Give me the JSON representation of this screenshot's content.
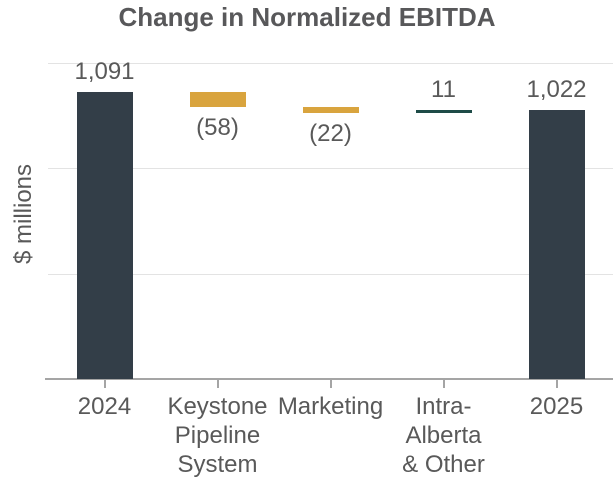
{
  "chart_data": {
    "type": "waterfall",
    "title": "Change in Normalized EBITDA",
    "ylabel": "$ millions",
    "xlabel": "",
    "ylim": [
      0,
      1200
    ],
    "gridline_values": [
      400,
      800,
      1200
    ],
    "grid": "horizontal-light",
    "legend": "none",
    "bars": [
      {
        "tick_label": "2024",
        "role": "total",
        "value": 1091,
        "display": "1,091",
        "start": 0,
        "end": 1091,
        "label_position": "above"
      },
      {
        "tick_label": "Keystone\nPipeline\nSystem",
        "role": "decrease",
        "value": -58,
        "display": "(58)",
        "start": 1091,
        "end": 1033,
        "label_position": "below"
      },
      {
        "tick_label": "Marketing",
        "role": "decrease",
        "value": -22,
        "display": "(22)",
        "start": 1033,
        "end": 1011,
        "label_position": "below"
      },
      {
        "tick_label": "Intra-\nAlberta\n& Other",
        "role": "increase",
        "value": 11,
        "display": "11",
        "start": 1011,
        "end": 1022,
        "label_position": "above"
      },
      {
        "tick_label": "2025",
        "role": "total",
        "value": 1022,
        "display": "1,022",
        "start": 0,
        "end": 1022,
        "label_position": "above"
      }
    ],
    "colors": {
      "total": "#333E48",
      "decrease": "#D9A43E",
      "increase": "#1E4B47",
      "gridline": "#E3E3E3",
      "axis": "#A5A5A5",
      "label_text": "#595959",
      "title_text": "#58585A"
    }
  }
}
